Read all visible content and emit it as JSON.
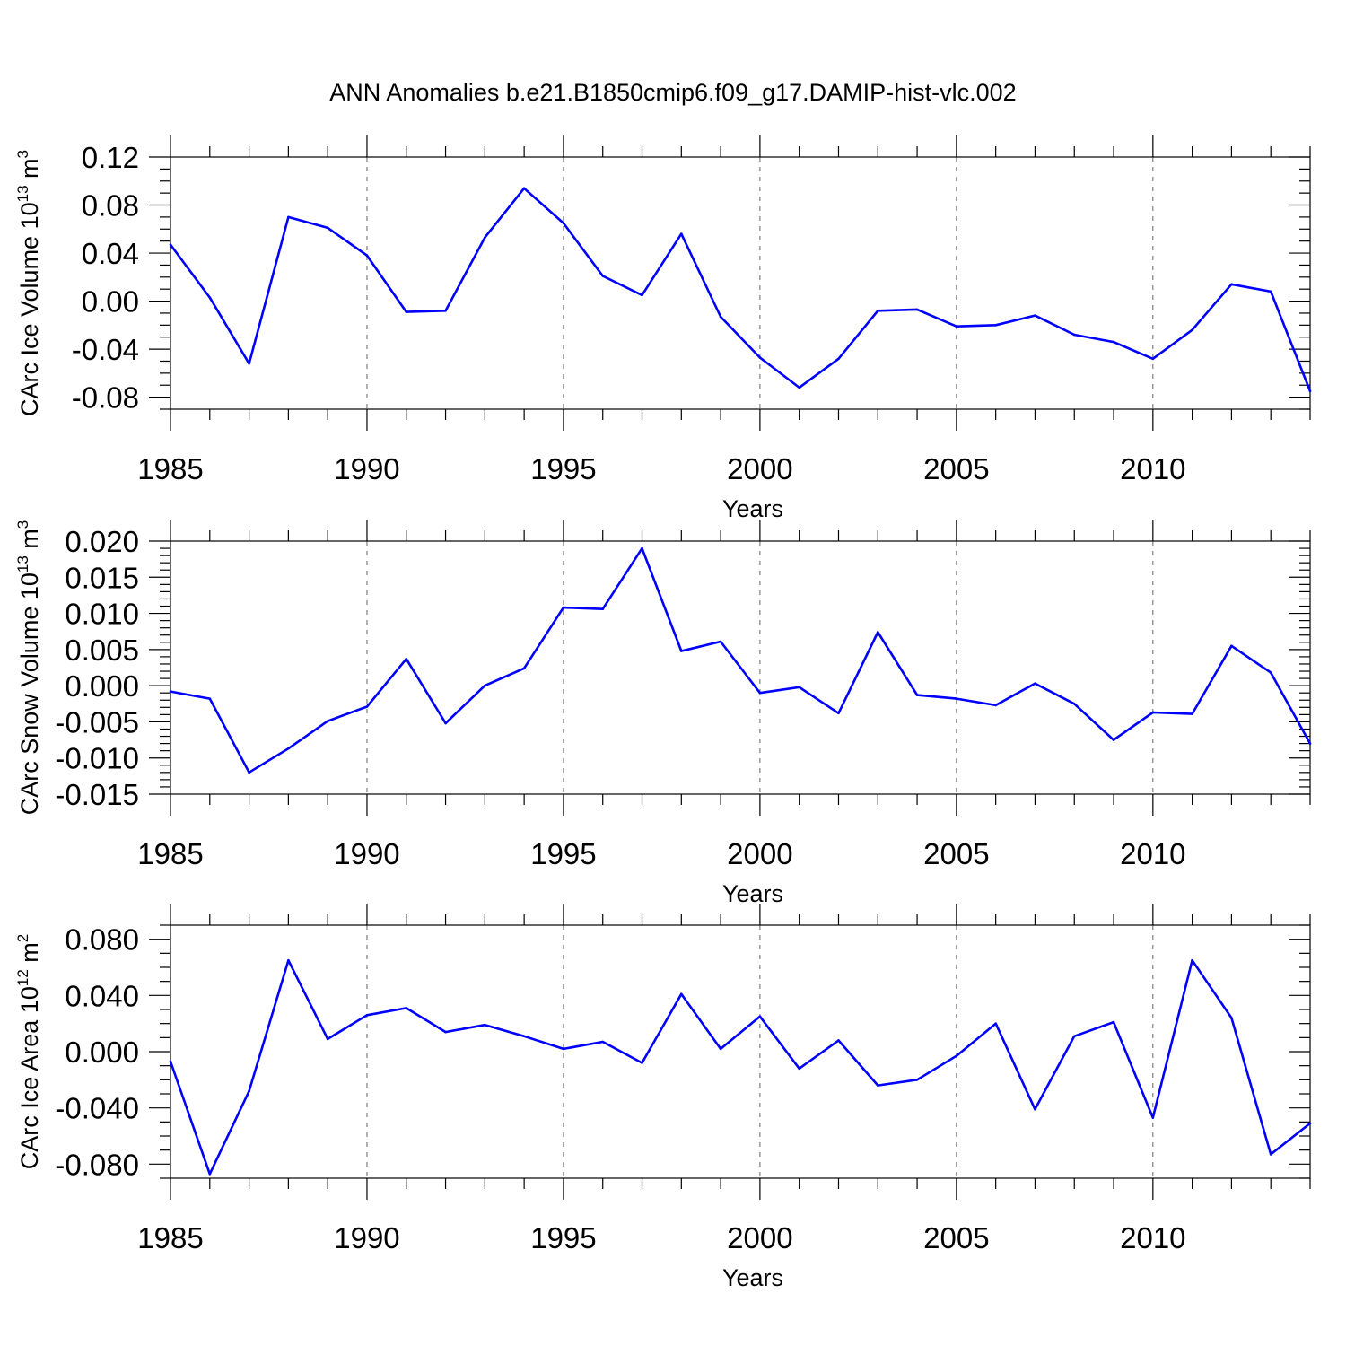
{
  "title": "ANN Anomalies b.e21.B1850cmip6.f09_g17.DAMIP-hist-vlc.002",
  "chart_data": [
    {
      "type": "line",
      "name": "ice-volume",
      "xlabel": "Years",
      "ylabel": {
        "base": "CArc Ice Volume 10",
        "exp1": "13",
        "mid": " m",
        "exp2": "3"
      },
      "x": [
        1985,
        1986,
        1987,
        1988,
        1989,
        1990,
        1991,
        1992,
        1993,
        1994,
        1995,
        1996,
        1997,
        1998,
        1999,
        2000,
        2001,
        2002,
        2003,
        2004,
        2005,
        2006,
        2007,
        2008,
        2009,
        2010,
        2011,
        2012,
        2013,
        2014
      ],
      "series": [
        {
          "name": "CArc Ice Volume",
          "color": "#0000ff",
          "values": [
            0.047,
            0.003,
            -0.052,
            0.07,
            0.061,
            0.038,
            -0.009,
            -0.008,
            0.053,
            0.094,
            0.065,
            0.021,
            0.005,
            0.056,
            -0.013,
            -0.047,
            -0.072,
            -0.048,
            -0.008,
            -0.007,
            -0.021,
            -0.02,
            -0.012,
            -0.028,
            -0.034,
            -0.048,
            -0.024,
            0.014,
            0.008,
            -0.075
          ]
        }
      ],
      "xlim": [
        1985,
        2014
      ],
      "ylim": [
        -0.09,
        0.12
      ],
      "yticks": [
        -0.08,
        -0.04,
        0.0,
        0.04,
        0.08,
        0.12
      ],
      "ytick_labels": [
        "-0.08",
        "-0.04",
        "0.00",
        "0.04",
        "0.08",
        "0.12"
      ],
      "yminor_step": 0.01,
      "xticks": [
        1985,
        1990,
        1995,
        2000,
        2005,
        2010
      ],
      "xtick_labels": [
        "1985",
        "1990",
        "1995",
        "2000",
        "2005",
        "2010"
      ],
      "grid_x": [
        1990,
        1995,
        2000,
        2005,
        2010
      ]
    },
    {
      "type": "line",
      "name": "snow-volume",
      "xlabel": "Years",
      "ylabel": {
        "base": "CArc Snow Volume 10",
        "exp1": "13",
        "mid": " m",
        "exp2": "3"
      },
      "x": [
        1985,
        1986,
        1987,
        1988,
        1989,
        1990,
        1991,
        1992,
        1993,
        1994,
        1995,
        1996,
        1997,
        1998,
        1999,
        2000,
        2001,
        2002,
        2003,
        2004,
        2005,
        2006,
        2007,
        2008,
        2009,
        2010,
        2011,
        2012,
        2013,
        2014
      ],
      "series": [
        {
          "name": "CArc Snow Volume",
          "color": "#0000ff",
          "values": [
            -0.0008,
            -0.0018,
            -0.012,
            -0.0087,
            -0.0049,
            -0.0029,
            0.0037,
            -0.0052,
            0.0,
            0.0024,
            0.0108,
            0.0106,
            0.019,
            0.0048,
            0.0061,
            -0.001,
            -0.0002,
            -0.0038,
            0.0074,
            -0.0013,
            -0.0018,
            -0.0027,
            0.0003,
            -0.0025,
            -0.0075,
            -0.0037,
            -0.0039,
            0.0055,
            0.0018,
            -0.008
          ]
        }
      ],
      "xlim": [
        1985,
        2014
      ],
      "ylim": [
        -0.015,
        0.02
      ],
      "yticks": [
        -0.015,
        -0.01,
        -0.005,
        0.0,
        0.005,
        0.01,
        0.015,
        0.02
      ],
      "ytick_labels": [
        "-0.015",
        "-0.010",
        "-0.005",
        "0.000",
        "0.005",
        "0.010",
        "0.015",
        "0.020"
      ],
      "yminor_step": 0.001,
      "xticks": [
        1985,
        1990,
        1995,
        2000,
        2005,
        2010
      ],
      "xtick_labels": [
        "1985",
        "1990",
        "1995",
        "2000",
        "2005",
        "2010"
      ],
      "grid_x": [
        1990,
        1995,
        2000,
        2005,
        2010
      ]
    },
    {
      "type": "line",
      "name": "ice-area",
      "xlabel": "Years",
      "ylabel": {
        "base": "CArc Ice Area 10",
        "exp1": "12",
        "mid": " m",
        "exp2": "2"
      },
      "x": [
        1985,
        1986,
        1987,
        1988,
        1989,
        1990,
        1991,
        1992,
        1993,
        1994,
        1995,
        1996,
        1997,
        1998,
        1999,
        2000,
        2001,
        2002,
        2003,
        2004,
        2005,
        2006,
        2007,
        2008,
        2009,
        2010,
        2011,
        2012,
        2013,
        2014
      ],
      "series": [
        {
          "name": "CArc Ice Area",
          "color": "#0000ff",
          "values": [
            -0.007,
            -0.087,
            -0.028,
            0.065,
            0.009,
            0.026,
            0.031,
            0.014,
            0.019,
            0.011,
            0.002,
            0.007,
            -0.008,
            0.041,
            0.002,
            0.025,
            -0.012,
            0.008,
            -0.024,
            -0.02,
            -0.003,
            0.02,
            -0.041,
            0.011,
            0.021,
            -0.047,
            0.065,
            0.024,
            -0.073,
            -0.051
          ]
        }
      ],
      "xlim": [
        1985,
        2014
      ],
      "ylim": [
        -0.09,
        0.09
      ],
      "yticks": [
        -0.08,
        -0.04,
        0.0,
        0.04,
        0.08
      ],
      "ytick_labels": [
        "-0.080",
        "-0.040",
        "0.000",
        "0.040",
        "0.080"
      ],
      "yminor_step": 0.01,
      "xticks": [
        1985,
        1990,
        1995,
        2000,
        2005,
        2010
      ],
      "xtick_labels": [
        "1985",
        "1990",
        "1995",
        "2000",
        "2005",
        "2010"
      ],
      "grid_x": [
        1990,
        1995,
        2000,
        2005,
        2010
      ]
    }
  ]
}
